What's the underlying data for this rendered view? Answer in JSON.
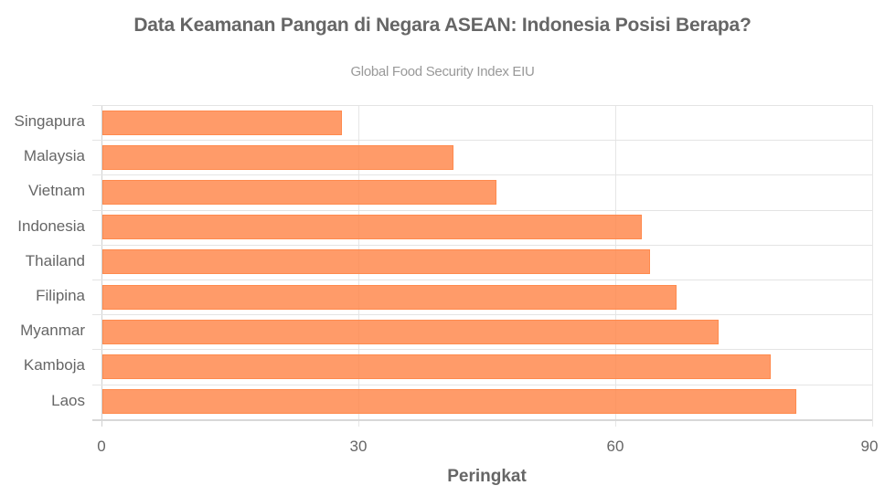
{
  "header": {
    "title": "Data Keamanan Pangan di Negara ASEAN: Indonesia Posisi Berapa?",
    "subtitle": "Global Food Security Index EIU"
  },
  "axis": {
    "xlabel": "Peringkat",
    "ticks": [
      "0",
      "30",
      "60",
      "90"
    ]
  },
  "colors": {
    "bar": "#ff9966",
    "bar_border": "#ff8a4d",
    "grid": "#e4e4e4",
    "text": "#666666"
  },
  "chart_data": {
    "type": "bar",
    "orientation": "horizontal",
    "title": "Data Keamanan Pangan di Negara ASEAN: Indonesia Posisi Berapa?",
    "subtitle": "Global Food Security Index EIU",
    "xlabel": "Peringkat",
    "ylabel": "",
    "xlim": [
      0,
      90
    ],
    "xticks": [
      0,
      30,
      60,
      90
    ],
    "grid": true,
    "legend": null,
    "categories": [
      "Singapura",
      "Malaysia",
      "Vietnam",
      "Indonesia",
      "Thailand",
      "Filipina",
      "Myanmar",
      "Kamboja",
      "Laos"
    ],
    "values": [
      28,
      41,
      46,
      63,
      64,
      67,
      72,
      78,
      81
    ]
  }
}
